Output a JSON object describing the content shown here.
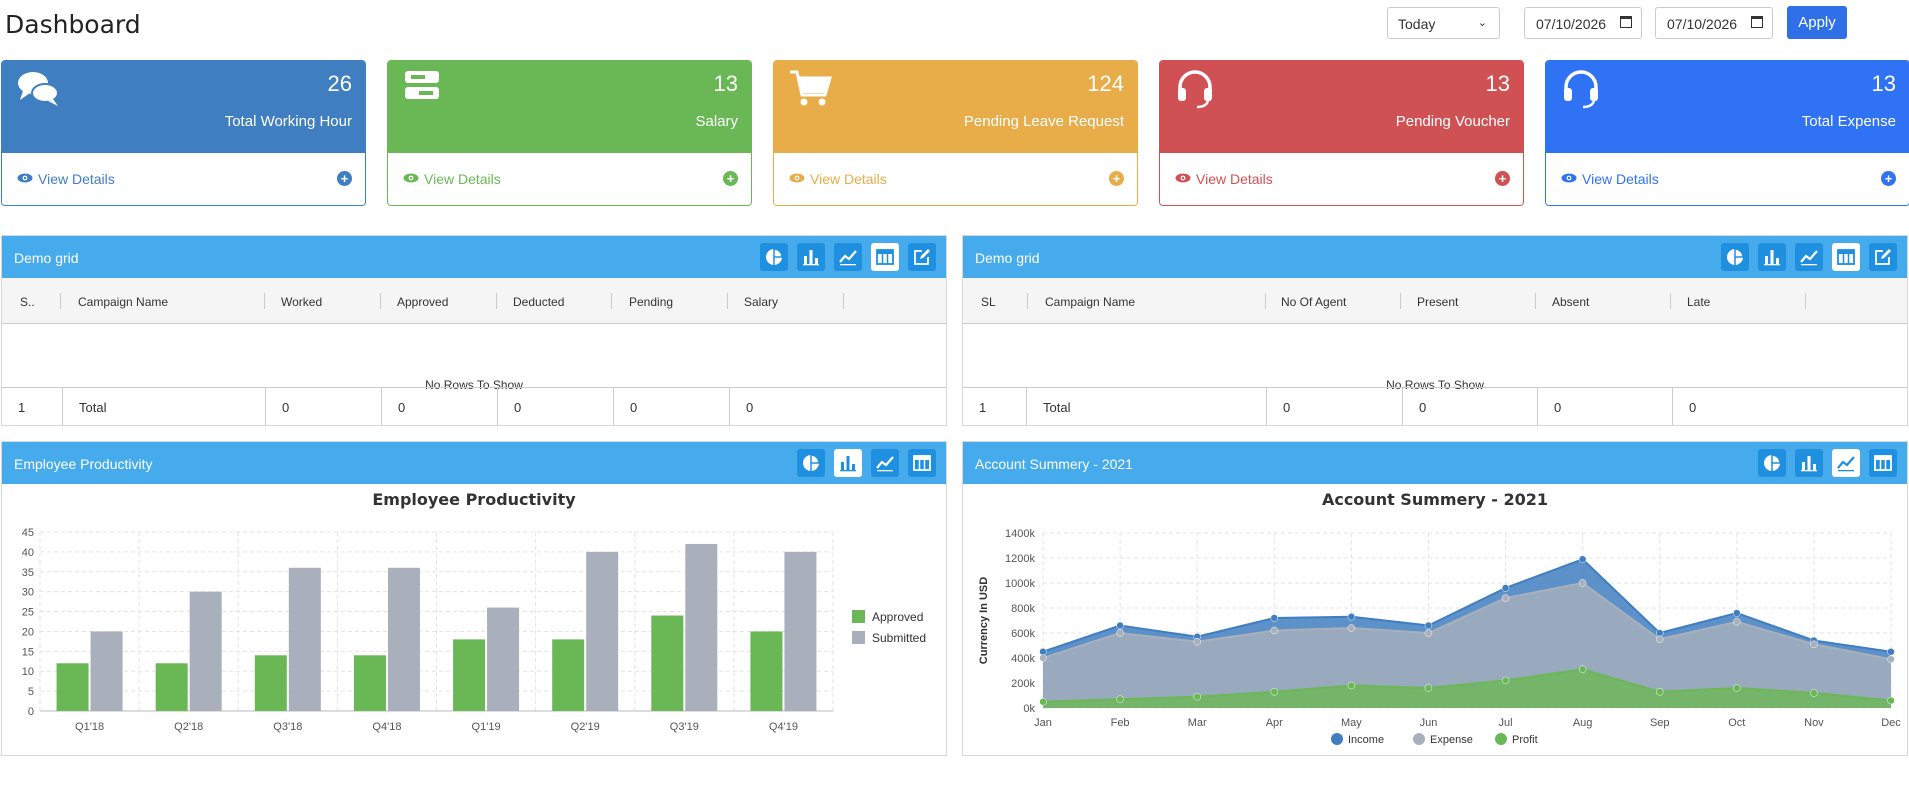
{
  "header": {
    "title": "Dashboard",
    "period_select": "Today",
    "date_from": "07/10/2026",
    "date_to": "07/10/2026",
    "apply_label": "Apply"
  },
  "cards": [
    {
      "value": "26",
      "label": "Total Working Hour",
      "link": "View Details",
      "color": "#3f7ec0",
      "icon": "chat-bubbles-icon"
    },
    {
      "value": "13",
      "label": "Salary",
      "link": "View Details",
      "color": "#6ab855",
      "icon": "server-icon"
    },
    {
      "value": "124",
      "label": "Pending Leave Request",
      "link": "View Details",
      "color": "#e8ac48",
      "icon": "cart-icon"
    },
    {
      "value": "13",
      "label": "Pending Voucher",
      "link": "View Details",
      "color": "#d05154",
      "icon": "headset-icon"
    },
    {
      "value": "13",
      "label": "Total Expense",
      "link": "View Details",
      "color": "#2f72f3",
      "icon": "headset-icon"
    }
  ],
  "grid1": {
    "title": "Demo grid",
    "columns": [
      "S..",
      "Campaign Name",
      "Worked",
      "Approved",
      "Deducted",
      "Pending",
      "Salary"
    ],
    "empty_text": "No Rows To Show",
    "totals": [
      "1",
      "Total",
      "0",
      "0",
      "0",
      "0",
      "0"
    ]
  },
  "grid2": {
    "title": "Demo grid",
    "columns": [
      "SL",
      "Campaign Name",
      "No Of Agent",
      "Present",
      "Absent",
      "Late"
    ],
    "empty_text": "No Rows To Show",
    "totals": [
      "1",
      "Total",
      "0",
      "0",
      "0",
      "0"
    ]
  },
  "panel3": {
    "title": "Employee Productivity"
  },
  "panel4": {
    "title": "Account Summery - 2021"
  },
  "chart_data": [
    {
      "type": "bar",
      "title": "Employee Productivity",
      "categories": [
        "Q1'18",
        "Q2'18",
        "Q3'18",
        "Q4'18",
        "Q1'19",
        "Q2'19",
        "Q3'19",
        "Q4'19"
      ],
      "series": [
        {
          "name": "Approved",
          "color": "#6ab855",
          "values": [
            12,
            12,
            14,
            14,
            18,
            18,
            24,
            20
          ]
        },
        {
          "name": "Submitted",
          "color": "#a9b0bb",
          "values": [
            20,
            30,
            36,
            36,
            26,
            40,
            42,
            40
          ]
        }
      ],
      "ylim": [
        0,
        45
      ],
      "yticks": [
        "0",
        "5",
        "10",
        "15",
        "20",
        "25",
        "30",
        "35",
        "40",
        "45"
      ],
      "grid": true,
      "legend": "right"
    },
    {
      "type": "area",
      "title": "Account Summery - 2021",
      "ylabel": "Currency In USD",
      "categories": [
        "Jan",
        "Feb",
        "Mar",
        "Apr",
        "May",
        "Jun",
        "Jul",
        "Aug",
        "Sep",
        "Oct",
        "Nov",
        "Dec"
      ],
      "series": [
        {
          "name": "Income",
          "color": "#3f7ec0",
          "values": [
            450000,
            660000,
            570000,
            720000,
            730000,
            660000,
            960000,
            1190000,
            600000,
            760000,
            540000,
            450000
          ]
        },
        {
          "name": "Expense",
          "color": "#a9b0bb",
          "values": [
            400000,
            600000,
            530000,
            620000,
            640000,
            600000,
            880000,
            1000000,
            550000,
            690000,
            510000,
            390000
          ]
        },
        {
          "name": "Profit",
          "color": "#6ab855",
          "values": [
            50000,
            70000,
            90000,
            130000,
            180000,
            160000,
            220000,
            310000,
            130000,
            160000,
            120000,
            60000
          ]
        }
      ],
      "ylim": [
        0,
        1400000
      ],
      "yticks": [
        "0k",
        "200k",
        "400k",
        "600k",
        "800k",
        "1000k",
        "1200k",
        "1400k"
      ],
      "grid": true,
      "legend": "bottom"
    }
  ]
}
